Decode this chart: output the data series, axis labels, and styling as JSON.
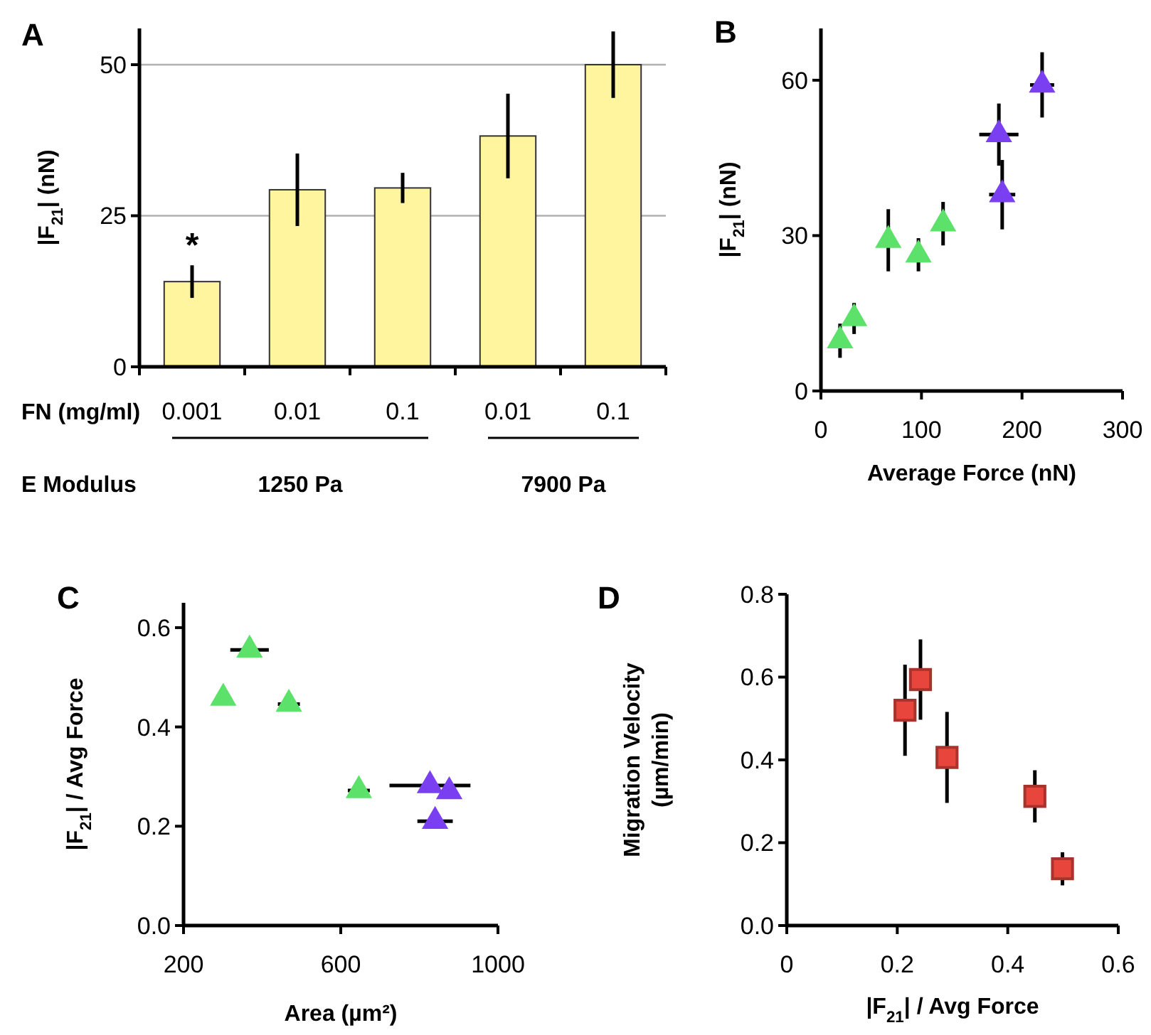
{
  "chart_data": [
    {
      "type": "bar",
      "title": "A",
      "ylabel": "|F$_{21}$| (nN)",
      "xlabel": "FN (mg/ml)",
      "categories": [
        "0.001",
        "0.01",
        "0.1",
        "0.01",
        "0.1"
      ],
      "values": [
        14.1,
        29.3,
        29.6,
        38.2,
        50
      ],
      "errors": [
        2.7,
        6,
        2.5,
        7,
        5.5
      ],
      "color": "#fff59f",
      "ylim": [
        0,
        56
      ],
      "yticks": [
        0,
        25,
        50
      ],
      "grid": "y",
      "annotations": [
        "*",
        "E Modulus",
        "1250 Pa",
        "7900 Pa"
      ]
    },
    {
      "type": "scatter",
      "title": "B",
      "xlabel": "Average Force (nN)",
      "ylabel": "|F$_{21}$| (nN)",
      "xlim": [
        0,
        300
      ],
      "xticks": [
        0,
        100,
        200,
        300
      ],
      "ylim": [
        0,
        70
      ],
      "yticks": [
        0,
        30,
        60
      ],
      "marker": "triangle",
      "grid": false,
      "series": [
        {
          "color": "#5ce16a",
          "x": [
            19,
            33,
            67,
            97,
            121.5
          ],
          "values": [
            9.7,
            14,
            29.1,
            26.3,
            32.3
          ],
          "errors": [
            3.3,
            3,
            6,
            3.2,
            4.2
          ]
        },
        {
          "color": "#7b3ff2",
          "x": [
            177,
            180.3,
            220
          ],
          "values": [
            49.5,
            37.9,
            59.1
          ],
          "errors": [
            6,
            6.7,
            6.3
          ],
          "xerrors": [
            19.5,
            13,
            12
          ]
        }
      ]
    },
    {
      "type": "scatter",
      "title": "C",
      "xlabel": "Area (µm²)",
      "ylabel": "|F$_{21}$| / Avg Force",
      "xlim": [
        200,
        1000
      ],
      "xticks": [
        200,
        600,
        1000
      ],
      "ylim": [
        0,
        0.65
      ],
      "yticks": [
        {
          "value": 0,
          "label": "0.0"
        },
        0.2,
        0.4,
        0.6
      ],
      "marker": "triangle",
      "grid": false,
      "series": [
        {
          "color": "#5ce16a",
          "x": [
            301,
            368,
            468,
            646
          ],
          "values": [
            0.458,
            0.555,
            0.446,
            0.272
          ],
          "xerrors": [
            null,
            49,
            28,
            28
          ]
        },
        {
          "color": "#7b3ff2",
          "x": [
            827,
            876,
            840
          ],
          "values": [
            0.282,
            0.27,
            0.21
          ],
          "xerrors": [
            103,
            null,
            45
          ]
        }
      ]
    },
    {
      "type": "scatter",
      "title": "D",
      "xlabel": "|F$_{21}$| / Avg Force",
      "ylabel": "Migration Velocity (µm/min)",
      "xlim": [
        0,
        0.6
      ],
      "xticks": [
        0,
        0.2,
        0.4,
        0.6
      ],
      "ylim": [
        0,
        0.8
      ],
      "yticks": [
        {
          "value": 0,
          "label": "0.0"
        },
        0.2,
        0.4,
        0.6,
        0.8
      ],
      "marker": "square",
      "grid": false,
      "series": [
        {
          "color": "#e8453c",
          "x": [
            0.214,
            0.242,
            0.29,
            0.449,
            0.499
          ],
          "values": [
            0.52,
            0.594,
            0.406,
            0.312,
            0.137
          ],
          "errors": [
            0.11,
            0.097,
            0.11,
            0.063,
            0.04
          ]
        }
      ]
    }
  ]
}
